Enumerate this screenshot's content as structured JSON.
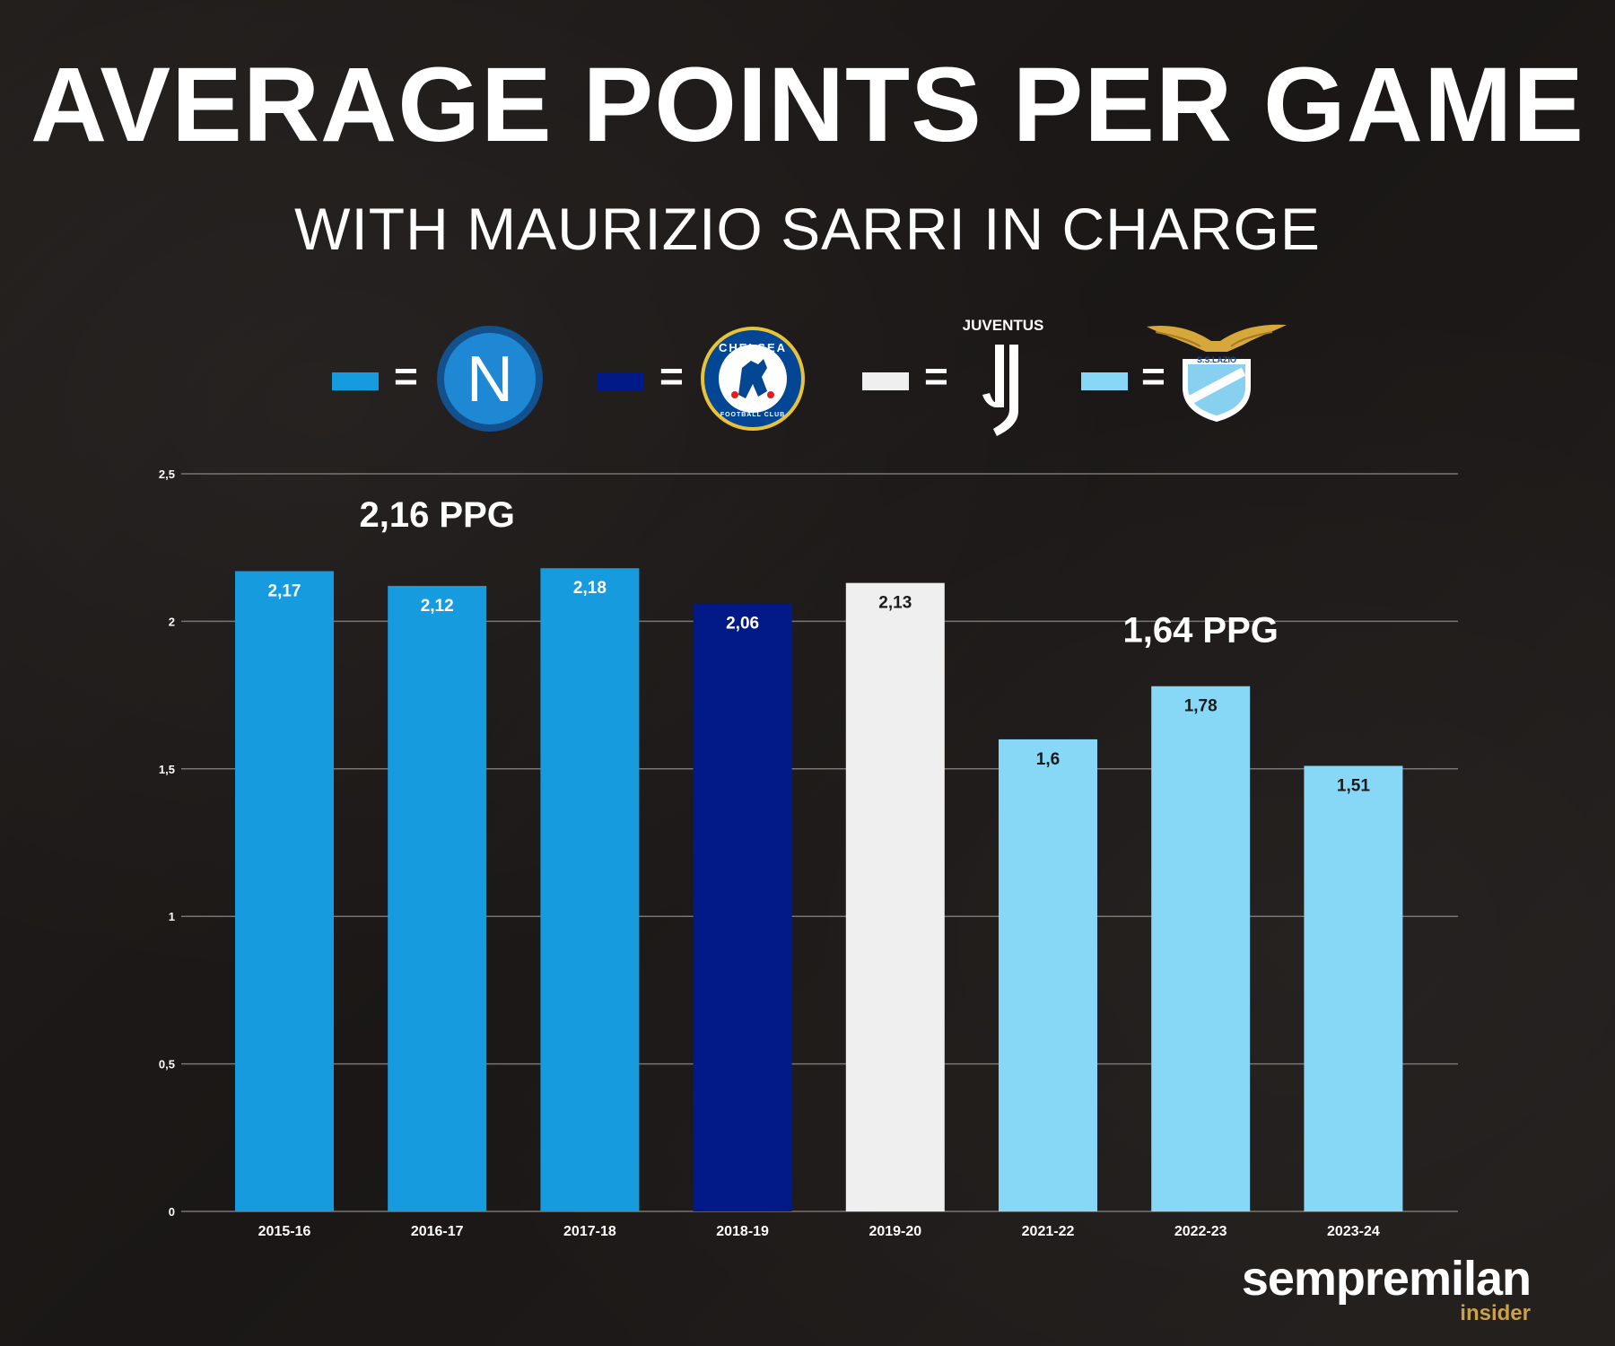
{
  "header": {
    "title": "AVERAGE POINTS PER GAME",
    "subtitle": "WITH MAURIZIO SARRI IN CHARGE"
  },
  "legend": [
    {
      "club": "Napoli",
      "color": "#169cde",
      "equals": "=",
      "icon": "napoli-crest-icon"
    },
    {
      "club": "Chelsea",
      "color": "#021a87",
      "equals": "=",
      "icon": "chelsea-crest-icon",
      "logo_text": "CHELSEA",
      "logo_subtext": "FOOTBALL CLUB"
    },
    {
      "club": "Juventus",
      "color": "#efefef",
      "equals": "=",
      "icon": "juventus-logo-icon",
      "logo_text": "JUVENTUS"
    },
    {
      "club": "Lazio",
      "color": "#87d8f7",
      "equals": "=",
      "icon": "lazio-crest-icon",
      "logo_text": "S.S.LAZIO"
    }
  ],
  "chart_data": {
    "type": "bar",
    "categories": [
      "2015-16",
      "2016-17",
      "2017-18",
      "2018-19",
      "2019-20",
      "2021-22",
      "2022-23",
      "2023-24"
    ],
    "values": [
      2.17,
      2.12,
      2.18,
      2.06,
      2.13,
      1.6,
      1.78,
      1.51
    ],
    "value_labels": [
      "2,17",
      "2,12",
      "2,18",
      "2,06",
      "2,13",
      "1,6",
      "1,78",
      "1,51"
    ],
    "bar_colors": [
      "#169cde",
      "#169cde",
      "#169cde",
      "#021a87",
      "#efefef",
      "#87d8f7",
      "#87d8f7",
      "#87d8f7"
    ],
    "label_colors": [
      "#ffffff",
      "#ffffff",
      "#ffffff",
      "#ffffff",
      "#1a1a1a",
      "#1a1a1a",
      "#1a1a1a",
      "#1a1a1a"
    ],
    "ylim": [
      0,
      2.5
    ],
    "yticks": [
      0,
      0.5,
      1,
      1.5,
      2,
      2.5
    ],
    "ytick_labels": [
      "0",
      "0,5",
      "1",
      "1,5",
      "2",
      "2,5"
    ],
    "grid": true,
    "annotations": [
      {
        "text": "2,16 PPG",
        "category": "2016-17",
        "y": 2.32
      },
      {
        "text": "1,64 PPG",
        "category": "2022-23",
        "y": 1.93
      }
    ]
  },
  "footer": {
    "brand": "sempremilan",
    "sub": "insider"
  }
}
